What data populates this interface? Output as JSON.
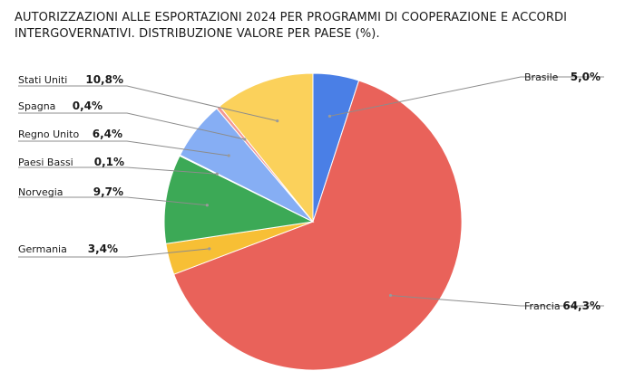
{
  "chart_data": {
    "type": "pie",
    "title": "AUTORIZZAZIONI ALLE ESPORTAZIONI 2024 PER PROGRAMMI DI COOPERAZIONE E ACCORDI INTERGOVERNATIVI. DISTRIBUZIONE VALORE PER PAESE (%).",
    "slices": [
      {
        "label": "Brasile",
        "value": 5.0,
        "display": "5,0%",
        "color": "#4a7fe6"
      },
      {
        "label": "Francia",
        "value": 64.3,
        "display": "64,3%",
        "color": "#e9625a"
      },
      {
        "label": "Germania",
        "value": 3.4,
        "display": "3,4%",
        "color": "#f7bf35"
      },
      {
        "label": "Norvegia",
        "value": 9.7,
        "display": "9,7%",
        "color": "#3ca956"
      },
      {
        "label": "Paesi Bassi",
        "value": 0.1,
        "display": "0,1%",
        "color": "#54c4bb"
      },
      {
        "label": "Regno Unito",
        "value": 6.4,
        "display": "6,4%",
        "color": "#86aef4"
      },
      {
        "label": "Spagna",
        "value": 0.4,
        "display": "0,4%",
        "color": "#f29994"
      },
      {
        "label": "Stati Uniti",
        "value": 10.8,
        "display": "10,8%",
        "color": "#fbd15b"
      }
    ]
  }
}
